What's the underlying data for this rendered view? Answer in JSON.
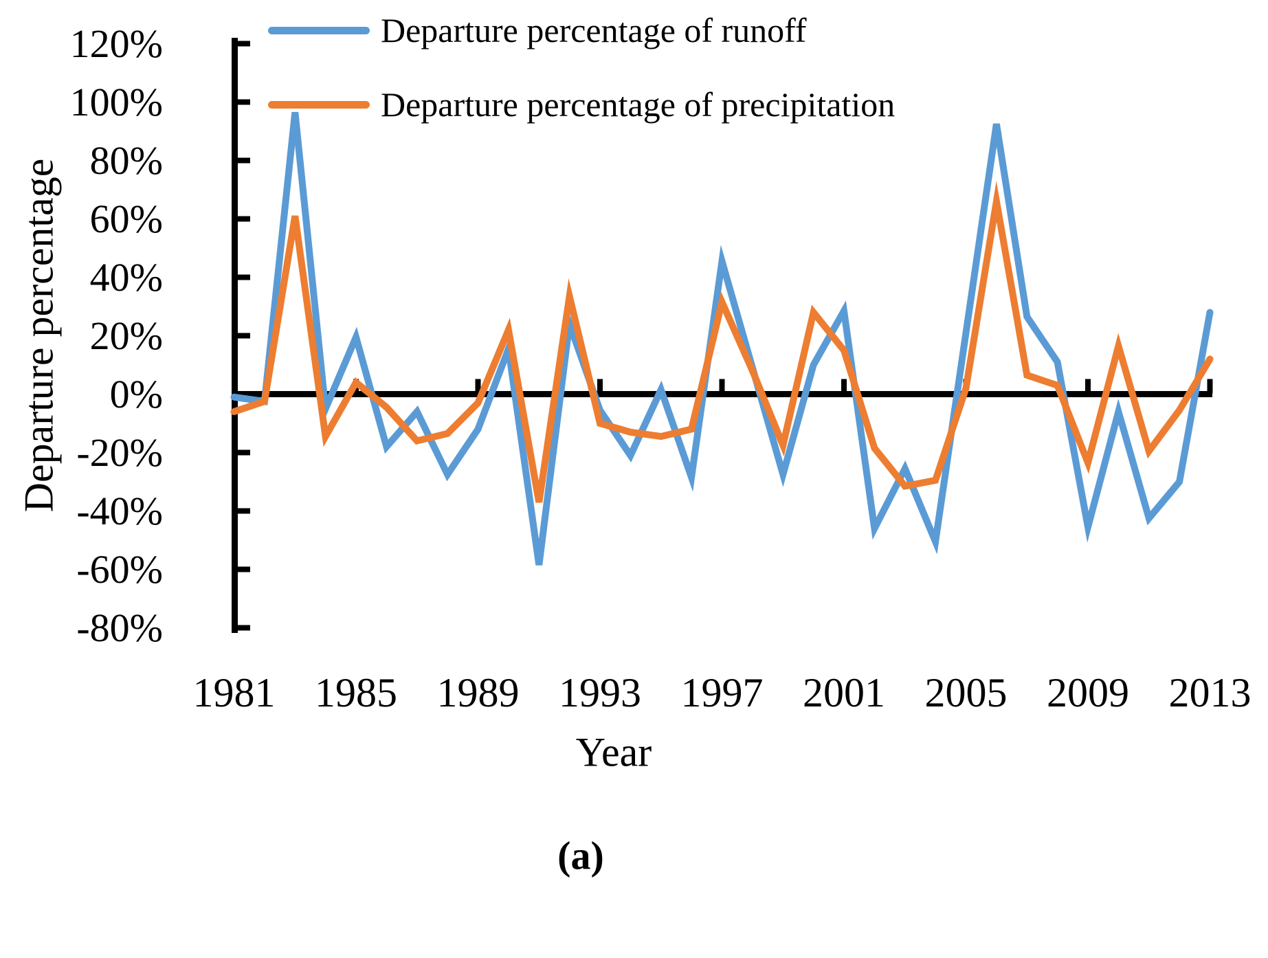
{
  "chart_data": {
    "type": "line",
    "title": "",
    "x": [
      1981,
      1982,
      1983,
      1984,
      1985,
      1986,
      1987,
      1988,
      1989,
      1990,
      1991,
      1992,
      1993,
      1994,
      1995,
      1996,
      1997,
      1998,
      1999,
      2000,
      2001,
      2002,
      2003,
      2004,
      2005,
      2006,
      2007,
      2008,
      2009,
      2010,
      2011,
      2012,
      2013
    ],
    "series": [
      {
        "name": "Departure percentage of runoff",
        "color": "#5B9BD5",
        "values": [
          -1,
          -2.5,
          96.5,
          -5,
          19.5,
          -18,
          -6,
          -27.5,
          -12,
          15.5,
          -58.5,
          24,
          -5.5,
          -21,
          1.5,
          -28.5,
          45.5,
          9,
          -27.5,
          10,
          28.5,
          -46,
          -25.5,
          -50.5,
          21,
          92.5,
          26.5,
          11,
          -45.5,
          -6,
          -42.5,
          -30,
          28
        ]
      },
      {
        "name": "Departure percentage of precipitation",
        "color": "#ED7D31",
        "values": [
          -6,
          -2.5,
          61,
          -14.5,
          4,
          -4.5,
          -16,
          -13.5,
          -3,
          22,
          -37,
          33.5,
          -10,
          -13,
          -14.5,
          -12,
          31.5,
          8,
          -17.5,
          28,
          15,
          -18.5,
          -31.5,
          -29.5,
          2,
          66,
          6.5,
          3,
          -23.5,
          16.5,
          -19.5,
          -5.5,
          12
        ]
      }
    ],
    "xlabel": "Year",
    "ylabel": "Departure percentage",
    "ylim": [
      -80,
      120
    ],
    "ytick_step": 20,
    "ytick_labels": [
      "120%",
      "100%",
      "80%",
      "60%",
      "40%",
      "20%",
      "0%",
      "-20%",
      "-40%",
      "-60%",
      "-80%"
    ],
    "xtick_years": [
      1981,
      1985,
      1989,
      1993,
      1997,
      2001,
      2005,
      2009,
      2013
    ],
    "xtick_labels": [
      "1981",
      "1985",
      "1989",
      "1993",
      "1997",
      "2001",
      "2005",
      "2009",
      "2013"
    ],
    "grid": false,
    "legend_position": "top-left"
  },
  "legend": {
    "runoff_label": "Departure percentage of runoff",
    "precip_label": "Departure percentage of precipitation"
  },
  "axis_titles": {
    "y": "Departure percentage",
    "x": "Year"
  },
  "caption": "(a)",
  "colors": {
    "runoff": "#5B9BD5",
    "precipitation": "#ED7D31",
    "axis": "#000000"
  }
}
